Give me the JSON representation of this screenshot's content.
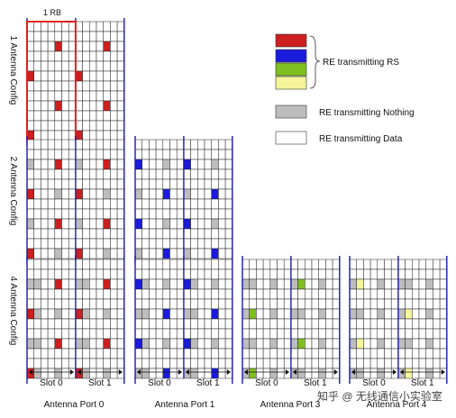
{
  "row_labels": [
    "1 Antenna Config",
    "2 Antenna Config",
    "4 Antenna Config"
  ],
  "rb_label": "1 RB",
  "slot_labels": [
    "Slot 0",
    "Slot 1"
  ],
  "port_labels": [
    "Antenna Port 0",
    "Antenna Port 1",
    "Antenna Port 3",
    "Antenna Port 4"
  ],
  "legend": {
    "rs_label": "RE transmitting RS",
    "nothing_label": "RE transmitting Nothing",
    "data_label": "RE transmitting Data"
  },
  "colors": {
    "port0": "#cc1f1f",
    "port1": "#1b1bdb",
    "port2": "#7fbf1f",
    "port3": "#f5f59a",
    "nothing": "#bdbdbd",
    "grid": "#222222",
    "frame": "#1a1aa8",
    "rb_box": "#e02020"
  },
  "watermark": "知乎 @ 无线通信小实验室"
}
